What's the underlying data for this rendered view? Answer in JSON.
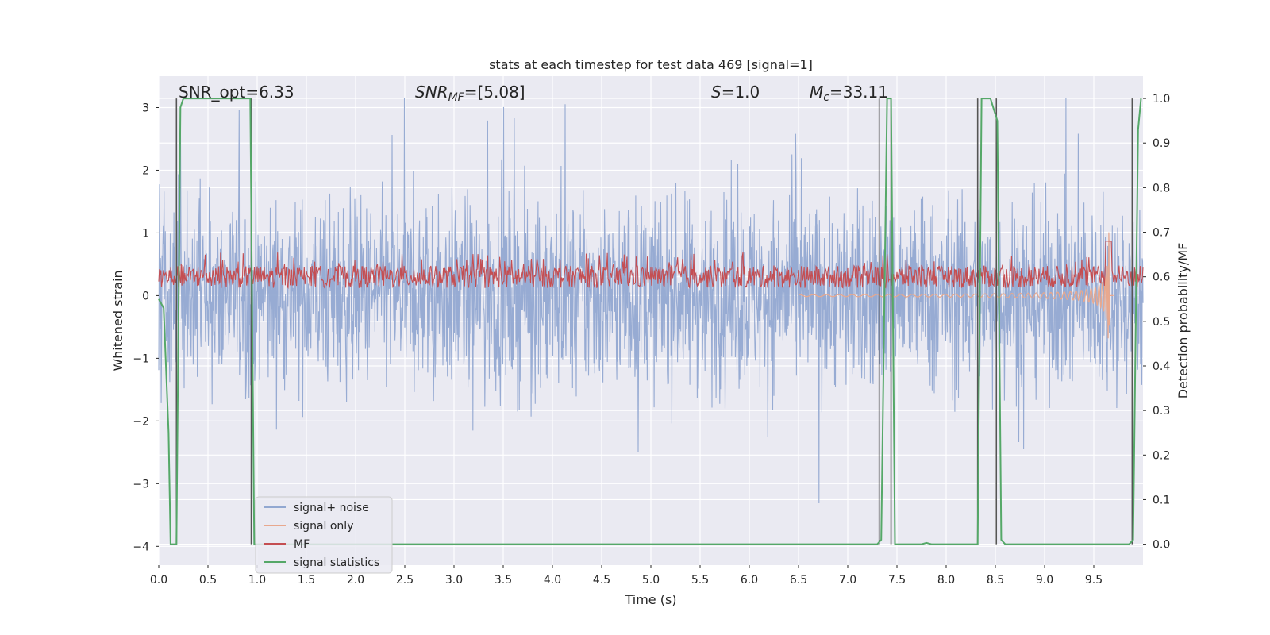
{
  "chart_data": {
    "type": "line",
    "title": "stats at each timestep for test data 469 [signal=1]",
    "xlabel": "Time (s)",
    "ylabel": "Whitened strain",
    "ylabel_right": "Detection probability/MF",
    "xlim": [
      0.0,
      10.0
    ],
    "ylim": [
      -4.3,
      3.5
    ],
    "ylim_right": [
      -0.047,
      1.05
    ],
    "xticks": [
      "0.0",
      "0.5",
      "1.0",
      "1.5",
      "2.0",
      "2.5",
      "3.0",
      "3.5",
      "4.0",
      "4.5",
      "5.0",
      "5.5",
      "6.0",
      "6.5",
      "7.0",
      "7.5",
      "8.0",
      "8.5",
      "9.0",
      "9.5"
    ],
    "yticks": [
      "3",
      "2",
      "1",
      "0",
      "−1",
      "−2",
      "−3",
      "−4"
    ],
    "yticks_right": [
      "1.0",
      "0.9",
      "0.8",
      "0.7",
      "0.6",
      "0.5",
      "0.4",
      "0.3",
      "0.2",
      "0.1",
      "0.0"
    ],
    "grid": true,
    "legend_position": "lower-left",
    "annotations": {
      "snr_opt": "SNR_opt=6.33",
      "snr_mf_base": "SNR",
      "snr_mf_sub": "MF",
      "snr_mf_rest": "=[5.08]",
      "s_var": "S",
      "s_rest": "=1.0",
      "mc_base": "M",
      "mc_sub": "c",
      "mc_rest": "=33.11"
    },
    "series": [
      {
        "name": "signal+ noise",
        "color": "#92a8d1",
        "axis": "left",
        "approx": "whitened noise, amplitude about ±2 with spikes to ±3"
      },
      {
        "name": "signal only",
        "color": "#e8a88e",
        "axis": "left",
        "approx": "chirp growing toward merger at about 9.65 s, peak about ±1.4"
      },
      {
        "name": "MF",
        "color": "#c44e52",
        "axis": "right",
        "approx": "matched-filter output, about 0.57–0.67"
      },
      {
        "name": "signal statistics",
        "color": "#55a868",
        "axis": "right",
        "x": [
          0.0,
          0.05,
          0.1,
          0.12,
          0.18,
          0.22,
          0.25,
          0.93,
          0.97,
          7.3,
          7.34,
          7.4,
          7.44,
          7.48,
          7.75,
          7.8,
          7.85,
          8.32,
          8.36,
          8.45,
          8.52,
          8.56,
          8.6,
          9.86,
          9.9,
          9.95,
          9.98
        ],
        "y": [
          0.55,
          0.53,
          0.25,
          0.0,
          0.0,
          0.98,
          1.0,
          1.0,
          0.0,
          0.0,
          0.01,
          1.0,
          1.0,
          0.0,
          0.0,
          0.003,
          0.0,
          0.0,
          1.0,
          1.0,
          0.95,
          0.01,
          0.0,
          0.0,
          0.01,
          0.93,
          1.0
        ]
      }
    ],
    "vertical_lines": [
      0.18,
      0.94,
      7.32,
      7.44,
      8.32,
      8.51,
      9.89
    ]
  }
}
